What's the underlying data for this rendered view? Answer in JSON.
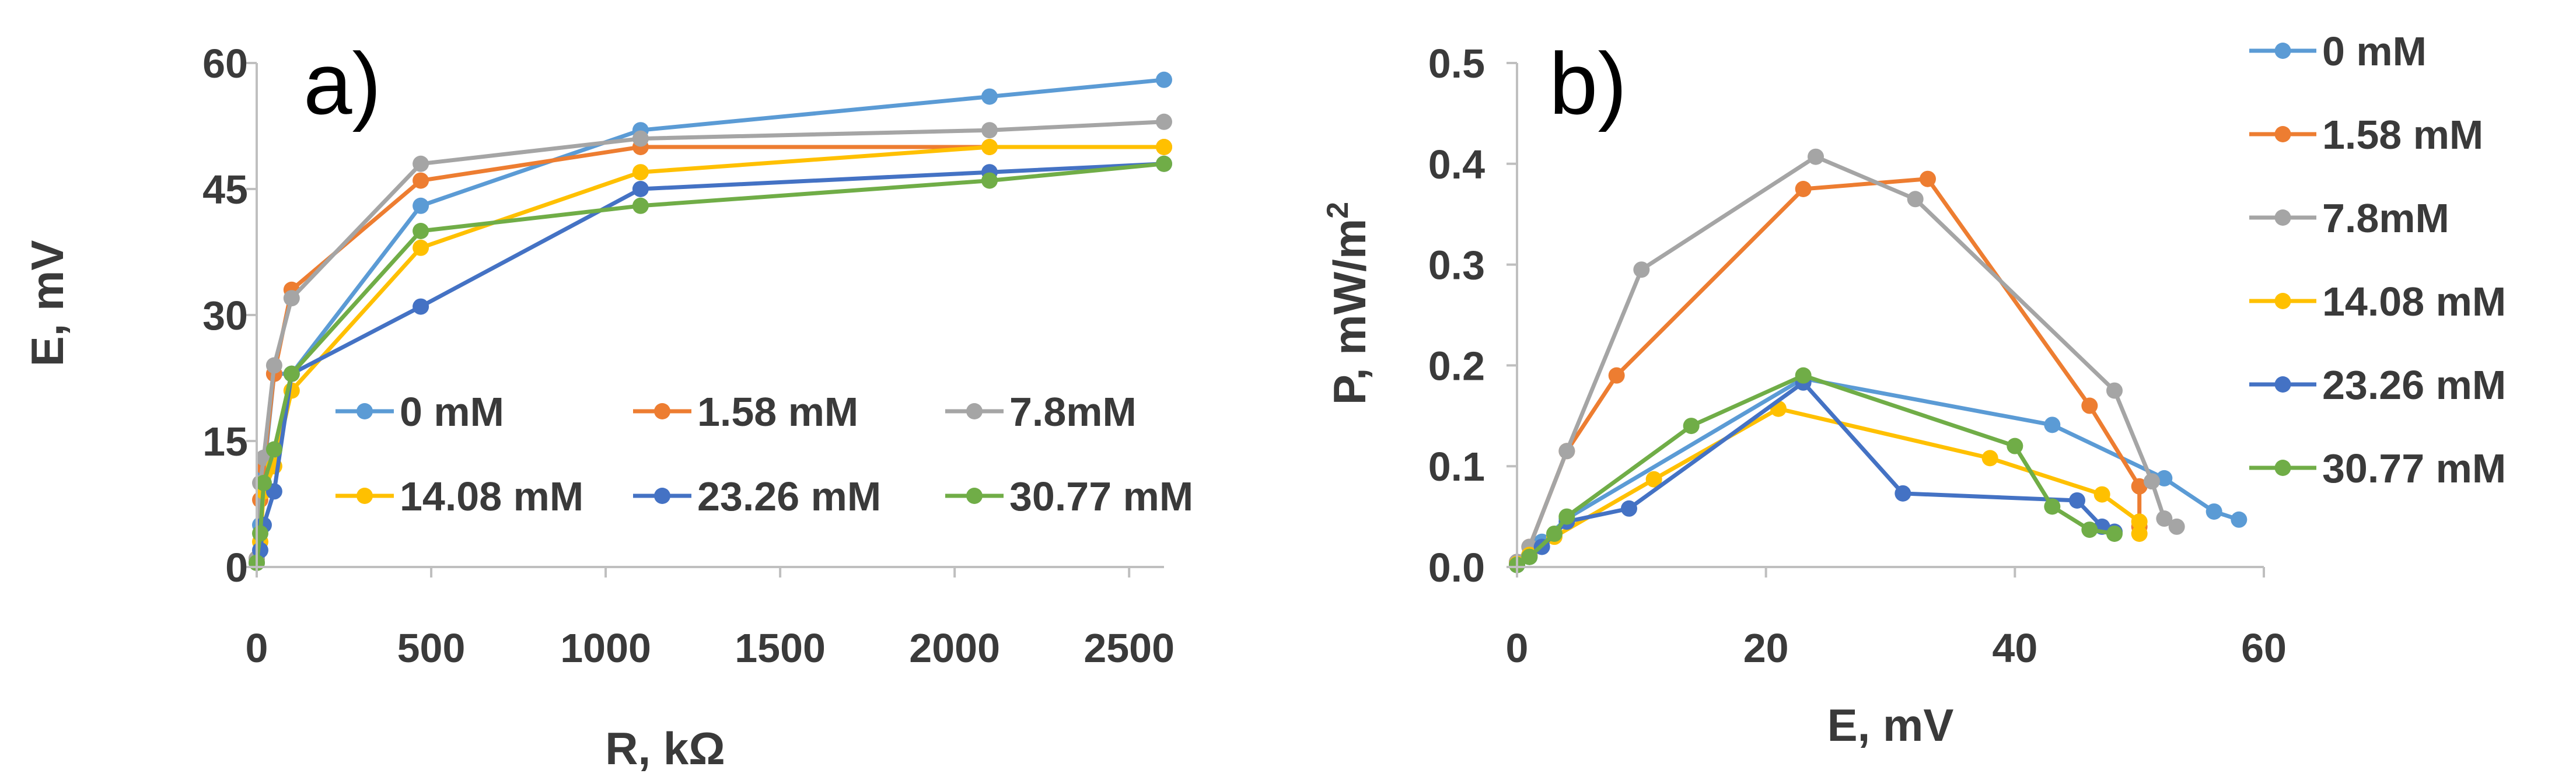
{
  "colors": {
    "0 mM": "#5b9bd5",
    "1.58 mM": "#ed7d31",
    "7.8mM": "#a5a5a5",
    "14.08 mM": "#ffc000",
    "23.26 mM": "#4472c4",
    "30.77 mM": "#70ad47",
    "axis": "#bfbfbf",
    "text": "#3a3a3a"
  },
  "chart_data": [
    {
      "type": "line",
      "panel_label": "a)",
      "xlabel": "R, kΩ",
      "ylabel": "E, mV",
      "xlim": [
        0,
        2600
      ],
      "ylim": [
        0,
        60
      ],
      "x_ticks": [
        0,
        500,
        1000,
        1500,
        2000,
        2500
      ],
      "y_ticks": [
        0,
        15,
        30,
        45,
        60
      ],
      "grid": false,
      "legend_position": "inside-bottom-right",
      "series": [
        {
          "name": "0 mM",
          "x": [
            0,
            10,
            20,
            50,
            100,
            470,
            1100,
            2100,
            2600
          ],
          "y": [
            0.5,
            5,
            11,
            23,
            23,
            43,
            52,
            56,
            58
          ]
        },
        {
          "name": "1.58 mM",
          "x": [
            0,
            10,
            20,
            50,
            100,
            470,
            1100,
            2100,
            2600
          ],
          "y": [
            1,
            8,
            12,
            23,
            33,
            46,
            50,
            50,
            50
          ]
        },
        {
          "name": "7.8mM",
          "x": [
            0,
            10,
            20,
            50,
            100,
            470,
            1100,
            2100,
            2600
          ],
          "y": [
            1,
            10,
            13,
            24,
            32,
            48,
            51,
            52,
            53
          ]
        },
        {
          "name": "14.08 mM",
          "x": [
            0,
            10,
            20,
            50,
            100,
            470,
            1100,
            2100,
            2600
          ],
          "y": [
            0.5,
            3,
            9,
            12,
            21,
            38,
            47,
            50,
            50
          ]
        },
        {
          "name": "23.26 mM",
          "x": [
            0,
            10,
            20,
            50,
            100,
            470,
            1100,
            2100,
            2600
          ],
          "y": [
            0.5,
            2,
            5,
            9,
            23,
            31,
            45,
            47,
            48
          ]
        },
        {
          "name": "30.77 mM",
          "x": [
            0,
            10,
            20,
            50,
            100,
            470,
            1100,
            2100,
            2600
          ],
          "y": [
            0.5,
            4,
            10,
            14,
            23,
            40,
            43,
            46,
            48
          ]
        }
      ]
    },
    {
      "type": "line",
      "panel_label": "b)",
      "xlabel": "E, mV",
      "ylabel": "P, mW/m",
      "ylabel_superscript": "2",
      "xlim": [
        0,
        60
      ],
      "ylim": [
        0,
        0.5
      ],
      "x_ticks": [
        0,
        20,
        40,
        60
      ],
      "y_ticks": [
        0.0,
        0.1,
        0.2,
        0.3,
        0.4,
        0.5
      ],
      "y_tick_labels": [
        "0.0",
        "0.1",
        "0.2",
        "0.3",
        "0.4",
        "0.5"
      ],
      "grid": false,
      "legend_position": "right",
      "series": [
        {
          "name": "0 mM",
          "x": [
            0,
            1,
            2,
            4,
            23,
            43,
            52,
            56,
            58
          ],
          "y": [
            0.005,
            0.012,
            0.025,
            0.048,
            0.187,
            0.141,
            0.088,
            0.055,
            0.047
          ]
        },
        {
          "name": "1.58 mM",
          "x": [
            0,
            1,
            4,
            8,
            23,
            33,
            46,
            50,
            50
          ],
          "y": [
            0.005,
            0.02,
            0.115,
            0.19,
            0.375,
            0.385,
            0.16,
            0.08,
            0.04
          ]
        },
        {
          "name": "7.8mM",
          "x": [
            0,
            1,
            4,
            10,
            24,
            32,
            48,
            51,
            52,
            53
          ],
          "y": [
            0.005,
            0.02,
            0.115,
            0.295,
            0.407,
            0.365,
            0.175,
            0.085,
            0.048,
            0.04
          ]
        },
        {
          "name": "14.08 mM",
          "x": [
            0,
            1,
            3,
            11,
            21,
            38,
            47,
            50,
            50
          ],
          "y": [
            0.003,
            0.012,
            0.03,
            0.087,
            0.157,
            0.108,
            0.072,
            0.045,
            0.033
          ]
        },
        {
          "name": "23.26 mM",
          "x": [
            0,
            1,
            2,
            4,
            9,
            23,
            31,
            45,
            47,
            48
          ],
          "y": [
            0.002,
            0.01,
            0.02,
            0.045,
            0.058,
            0.183,
            0.073,
            0.066,
            0.04,
            0.035
          ]
        },
        {
          "name": "30.77 mM",
          "x": [
            0,
            1,
            3,
            4,
            14,
            23,
            40,
            43,
            46,
            48
          ],
          "y": [
            0.002,
            0.01,
            0.033,
            0.05,
            0.14,
            0.19,
            0.12,
            0.06,
            0.037,
            0.033
          ]
        }
      ]
    }
  ]
}
